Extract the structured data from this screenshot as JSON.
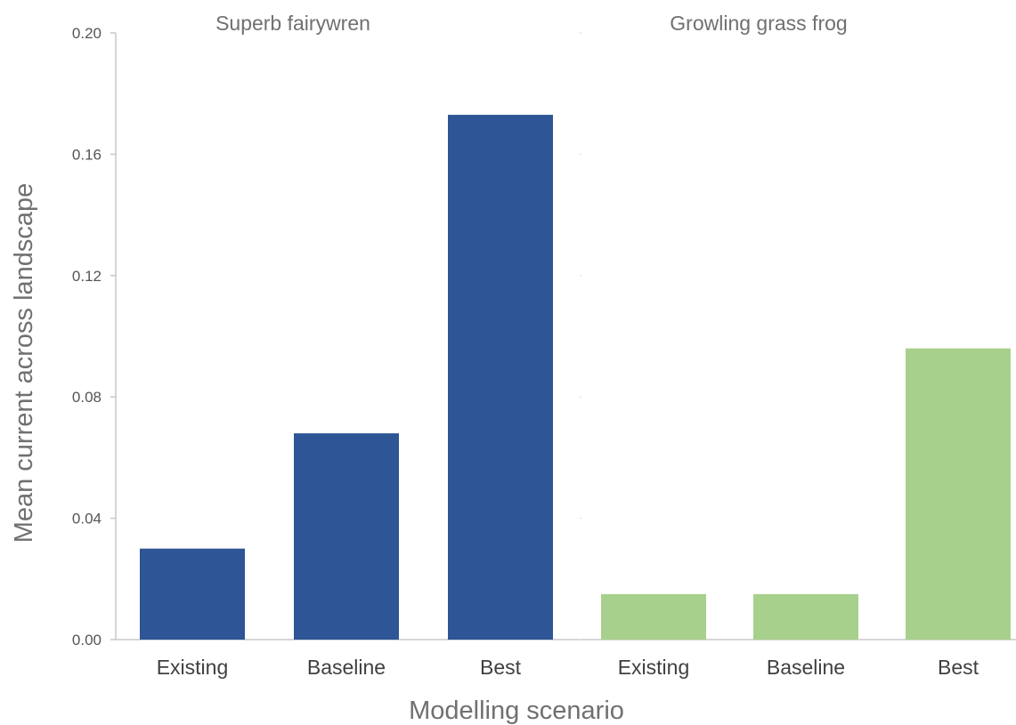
{
  "chart_data": {
    "type": "bar",
    "xlabel": "Modelling scenario",
    "ylabel": "Mean current across landscape",
    "ylim": [
      0,
      0.2
    ],
    "yticks": [
      "0.00",
      "0.04",
      "0.08",
      "0.12",
      "0.16",
      "0.20"
    ],
    "yticks_values": [
      0,
      0.04,
      0.08,
      0.12,
      0.16,
      0.2
    ],
    "grid": false,
    "panels": [
      {
        "title": "Superb fairywren",
        "color": "#2e5595",
        "categories": [
          "Existing",
          "Baseline",
          "Best"
        ],
        "values": [
          0.03,
          0.068,
          0.173
        ]
      },
      {
        "title": "Growling grass frog",
        "color": "#a8d08d",
        "categories": [
          "Existing",
          "Baseline",
          "Best"
        ],
        "values": [
          0.015,
          0.015,
          0.096
        ]
      }
    ]
  }
}
